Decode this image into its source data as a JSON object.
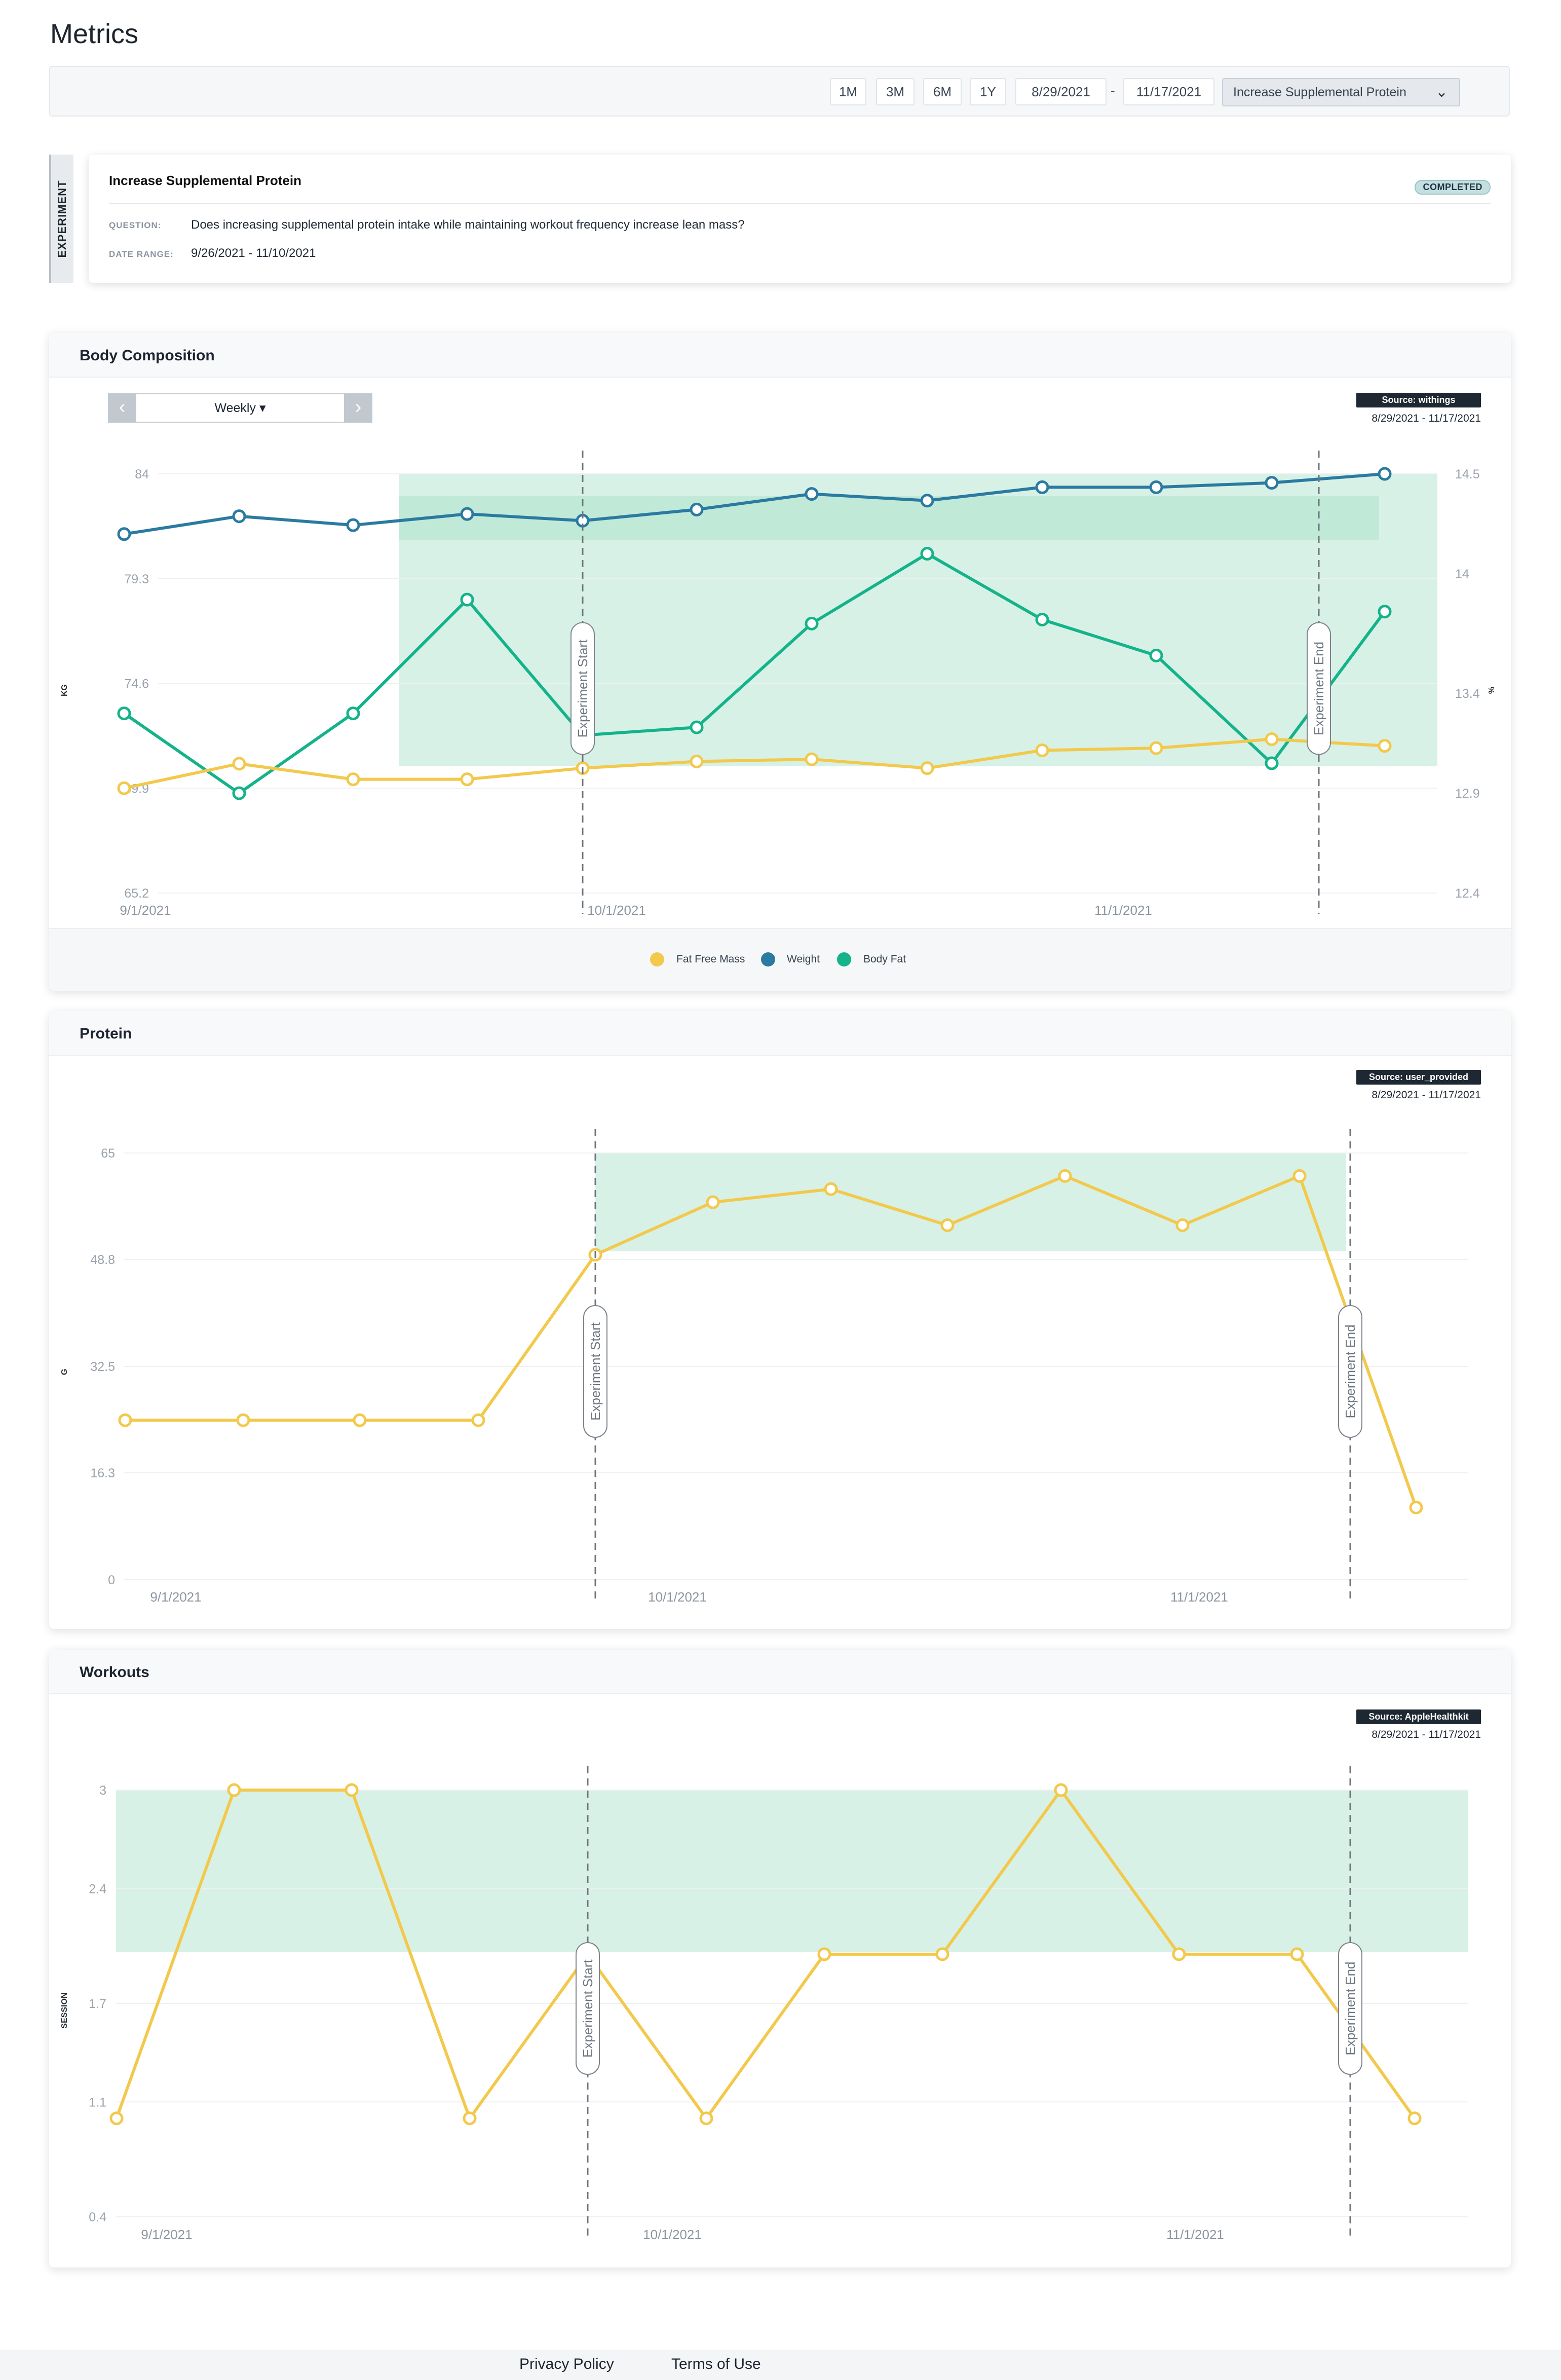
{
  "page": {
    "title": "Metrics"
  },
  "toolbar": {
    "ranges": [
      "1M",
      "3M",
      "6M",
      "1Y"
    ],
    "start_date": "8/29/2021",
    "date_separator": "-",
    "end_date": "11/17/2021",
    "experiment_select": "Increase Supplemental Protein"
  },
  "experiment": {
    "tab_label": "EXPERIMENT",
    "title": "Increase Supplemental Protein",
    "status": "COMPLETED",
    "question_label": "QUESTION:",
    "question": "Does increasing supplemental protein intake while maintaining workout frequency increase lean mass?",
    "date_range_label": "DATE RANGE:",
    "date_range": "9/26/2021 - 11/10/2021"
  },
  "body_composition": {
    "title": "Body Composition",
    "interval": "Weekly",
    "source": "Source: withings",
    "source_range": "8/29/2021 - 11/17/2021",
    "legend": [
      "Fat Free Mass",
      "Weight",
      "Body Fat"
    ]
  },
  "protein": {
    "title": "Protein",
    "source": "Source: user_provided",
    "source_range": "8/29/2021 - 11/17/2021"
  },
  "workouts": {
    "title": "Workouts",
    "source": "Source: AppleHealthkit",
    "source_range": "8/29/2021 - 11/17/2021"
  },
  "colors": {
    "fat_free_mass": "#f2c94c",
    "weight": "#2a7aa1",
    "body_fat": "#14b38a",
    "band": "#d4f0e4",
    "band_dark": "#bfe8d6"
  },
  "chart_data": [
    {
      "id": "body",
      "type": "line",
      "xlabel": "",
      "x_ticks": [
        "9/1/2021",
        "10/1/2021",
        "11/1/2021"
      ],
      "y_left": {
        "label": "KG",
        "ticks": [
          84,
          79.3,
          74.6,
          69.9,
          65.2
        ],
        "ylim": [
          65.2,
          84
        ]
      },
      "y_right": {
        "label": "%",
        "ticks": [
          14.5,
          14,
          13.4,
          12.9,
          12.4
        ],
        "ylim": [
          12.4,
          14.5
        ]
      },
      "markers": [
        "Experiment Start",
        "Experiment End"
      ],
      "series": [
        {
          "name": "Weight",
          "axis": "left",
          "color": "weight",
          "values": [
            81.3,
            82.1,
            81.7,
            82.2,
            81.9,
            82.4,
            83.1,
            82.8,
            83.4,
            83.4,
            83.6,
            84.0
          ]
        },
        {
          "name": "Body Fat",
          "axis": "right",
          "color": "body_fat",
          "values": [
            13.3,
            12.9,
            13.3,
            13.87,
            13.19,
            13.23,
            13.75,
            14.1,
            13.77,
            13.59,
            13.05,
            13.81
          ]
        },
        {
          "name": "Fat Free Mass",
          "axis": "left",
          "color": "fat_free_mass",
          "values": [
            69.9,
            71.0,
            70.3,
            70.3,
            70.8,
            71.1,
            71.2,
            70.8,
            71.6,
            71.7,
            72.1,
            71.8
          ]
        }
      ]
    },
    {
      "id": "protein",
      "type": "line",
      "x_ticks": [
        "9/1/2021",
        "10/1/2021",
        "11/1/2021"
      ],
      "y_left": {
        "label": "G",
        "ticks": [
          65,
          48.8,
          32.5,
          16.3,
          0
        ],
        "ylim": [
          0,
          65
        ]
      },
      "markers": [
        "Experiment Start",
        "Experiment End"
      ],
      "series": [
        {
          "name": "Protein",
          "color": "fat_free_mass",
          "values": [
            24.3,
            24.3,
            24.3,
            24.3,
            49.5,
            57.5,
            59.5,
            54.0,
            61.5,
            54.0,
            61.5,
            11.0
          ]
        }
      ]
    },
    {
      "id": "workouts",
      "type": "line",
      "x_ticks": [
        "9/1/2021",
        "10/1/2021",
        "11/1/2021"
      ],
      "y_left": {
        "label": "SESSION",
        "ticks": [
          3,
          2.4,
          1.7,
          1.1,
          0.4
        ],
        "ylim": [
          0.4,
          3
        ]
      },
      "markers": [
        "Experiment Start",
        "Experiment End"
      ],
      "series": [
        {
          "name": "Workouts",
          "color": "fat_free_mass",
          "values": [
            1,
            3,
            3,
            1,
            2,
            1,
            2,
            2,
            3,
            2,
            2,
            1
          ]
        }
      ]
    }
  ],
  "footer": {
    "privacy": "Privacy Policy",
    "terms": "Terms of Use"
  }
}
